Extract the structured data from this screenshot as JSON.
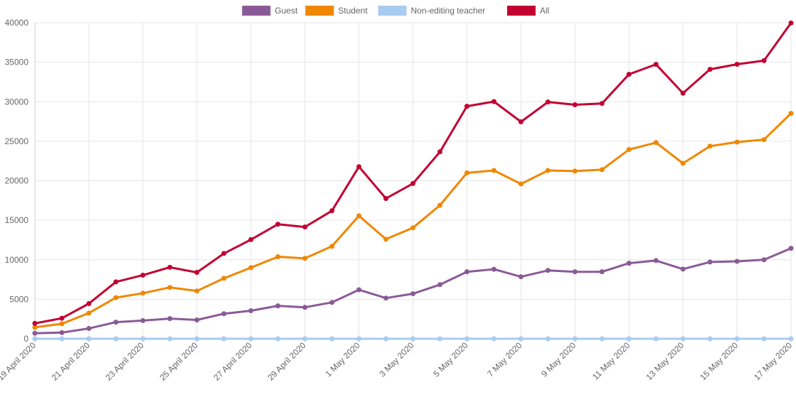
{
  "chart_data": {
    "type": "line",
    "x": [
      "19 April 2020",
      "20 April 2020",
      "21 April 2020",
      "22 April 2020",
      "23 April 2020",
      "24 April 2020",
      "25 April 2020",
      "26 April 2020",
      "27 April 2020",
      "28 April 2020",
      "29 April 2020",
      "30 April 2020",
      "1 May 2020",
      "2 May 2020",
      "3 May 2020",
      "4 May 2020",
      "5 May 2020",
      "6 May 2020",
      "7 May 2020",
      "8 May 2020",
      "9 May 2020",
      "10 May 2020",
      "11 May 2020",
      "12 May 2020",
      "13 May 2020",
      "14 May 2020",
      "15 May 2020",
      "16 May 2020",
      "17 May 2020"
    ],
    "x_tick_labels": [
      "19 April 2020",
      "21 April 2020",
      "23 April 2020",
      "25 April 2020",
      "27 April 2020",
      "29 April 2020",
      "1 May 2020",
      "3 May 2020",
      "5 May 2020",
      "7 May 2020",
      "9 May 2020",
      "11 May 2020",
      "13 May 2020",
      "15 May 2020",
      "17 May 2020"
    ],
    "ylim": [
      0,
      40000
    ],
    "y_ticks": [
      "0",
      "5000",
      "10000",
      "15000",
      "20000",
      "25000",
      "30000",
      "35000",
      "40000"
    ],
    "grid": true,
    "legend_position": "top-center",
    "series": [
      {
        "name": "Guest",
        "color": "#8a5a97",
        "values": [
          700,
          780,
          1300,
          2100,
          2300,
          2550,
          2380,
          3170,
          3550,
          4170,
          3980,
          4600,
          6200,
          5150,
          5700,
          6850,
          8480,
          8800,
          7850,
          8650,
          8480,
          8480,
          9560,
          9900,
          8820,
          9720,
          9800,
          10000,
          11450
        ]
      },
      {
        "name": "Student",
        "color": "#f08700",
        "values": [
          1450,
          1900,
          3250,
          5200,
          5770,
          6500,
          6050,
          7650,
          9000,
          10380,
          10180,
          11700,
          15560,
          12600,
          14050,
          16900,
          21000,
          21300,
          19600,
          21300,
          21220,
          21400,
          23950,
          24830,
          22200,
          24380,
          24900,
          25200,
          28530
        ]
      },
      {
        "name": "Non-editing teacher",
        "color": "#a8cbf0",
        "values": [
          0,
          0,
          0,
          0,
          0,
          0,
          0,
          0,
          0,
          0,
          0,
          0,
          0,
          0,
          0,
          0,
          0,
          0,
          0,
          0,
          0,
          0,
          0,
          0,
          0,
          0,
          0,
          0,
          0
        ]
      },
      {
        "name": "All",
        "color": "#c20032",
        "values": [
          1950,
          2600,
          4450,
          7200,
          8050,
          9050,
          8400,
          10800,
          12550,
          14500,
          14150,
          16200,
          21780,
          17750,
          19650,
          23660,
          29430,
          30020,
          27460,
          29970,
          29620,
          29780,
          33470,
          34730,
          31080,
          34100,
          34740,
          35200,
          39970
        ]
      }
    ]
  }
}
